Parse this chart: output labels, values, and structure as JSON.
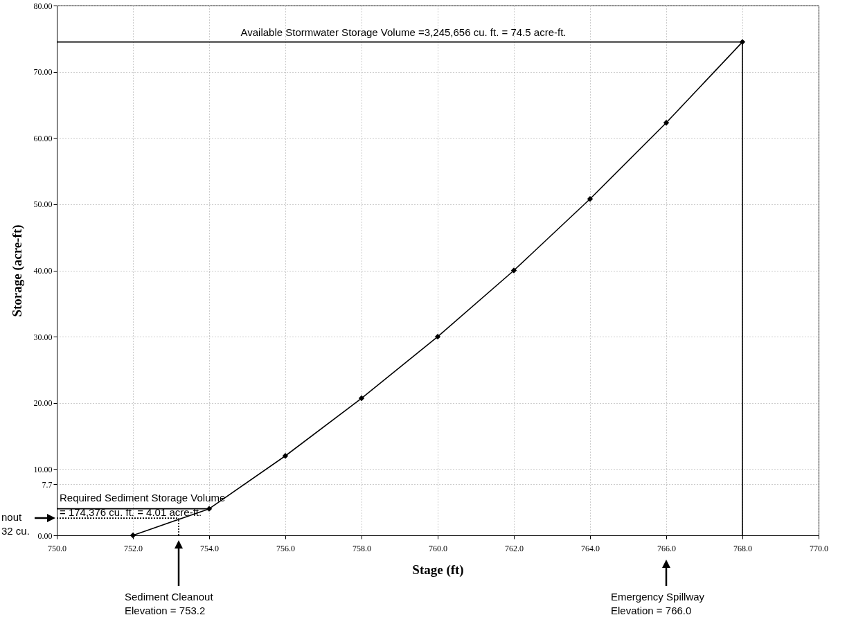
{
  "chart_data": {
    "type": "line",
    "xlabel": "Stage (ft)",
    "ylabel": "Storage (acre-ft)",
    "xlim": [
      750,
      770
    ],
    "xticks": [
      {
        "value": 750,
        "label": "750.0"
      },
      {
        "value": 752,
        "label": "752.0"
      },
      {
        "value": 754,
        "label": "754.0"
      },
      {
        "value": 756,
        "label": "756.0"
      },
      {
        "value": 758,
        "label": "758.0"
      },
      {
        "value": 760,
        "label": "760.0"
      },
      {
        "value": 762,
        "label": "762.0"
      },
      {
        "value": 764,
        "label": "764.0"
      },
      {
        "value": 766,
        "label": "766.0"
      },
      {
        "value": 768,
        "label": "768.0"
      },
      {
        "value": 770,
        "label": "770.0"
      }
    ],
    "ylim": [
      0,
      80
    ],
    "yticks": [
      {
        "value": 0,
        "label": "0.00"
      },
      7.7,
      {
        "value": 10,
        "label": "10.00"
      },
      {
        "value": 20,
        "label": "20.00"
      },
      {
        "value": 30,
        "label": "30.00"
      },
      {
        "value": 40,
        "label": "40.00"
      },
      {
        "value": 50,
        "label": "50.00"
      },
      {
        "value": 60,
        "label": "60.00"
      },
      {
        "value": 70,
        "label": "70.00"
      },
      {
        "value": 80,
        "label": "80.00"
      }
    ],
    "grid": true,
    "marker": "diamond",
    "x": [
      752,
      754,
      756,
      758,
      760,
      762,
      764,
      766,
      768
    ],
    "series": [
      {
        "color": "#000000",
        "values": [
          0,
          4.01,
          12.0,
          20.7,
          30.0,
          40.0,
          50.8,
          62.3,
          74.5
        ]
      },
      {
        "type": "line",
        "marker": "none",
        "color": "#000000",
        "x": [
          750,
          768
        ],
        "values": [
          74.5,
          74.5
        ]
      },
      {
        "type": "line",
        "marker": "none",
        "color": "#000000",
        "x": [
          768,
          768
        ],
        "values": [
          0,
          74.5
        ]
      },
      {
        "type": "line",
        "marker": "none",
        "color": "#000000",
        "x": [
          750,
          754
        ],
        "values": [
          4.01,
          4.01
        ]
      },
      {
        "type": "line",
        "marker": "none",
        "line_style": "dotted",
        "color": "#000000",
        "x": [
          750,
          753.2
        ],
        "values": [
          2.6,
          2.6
        ]
      },
      {
        "type": "line",
        "marker": "none",
        "line_style": "dotted",
        "color": "#000000",
        "x": [
          753.2,
          753.2
        ],
        "values": [
          0,
          2.6
        ]
      }
    ],
    "annotations": [
      {
        "text": "Available Stormwater Storage Volume =3,245,656 cu. ft. = 74.5 acre-ft.",
        "x": 759.1,
        "y": 74.5
      },
      {
        "text": "Required Sediment Storage Volume\n= 174,376 cu. ft. = 4.01 acre-ft.",
        "x": 750,
        "y": 4.01
      },
      "Sediment Cleanout\nElevation = 753.2",
      "Emergency Spillway\nElevation = 766.0",
      "nout\n32 cu."
    ]
  }
}
